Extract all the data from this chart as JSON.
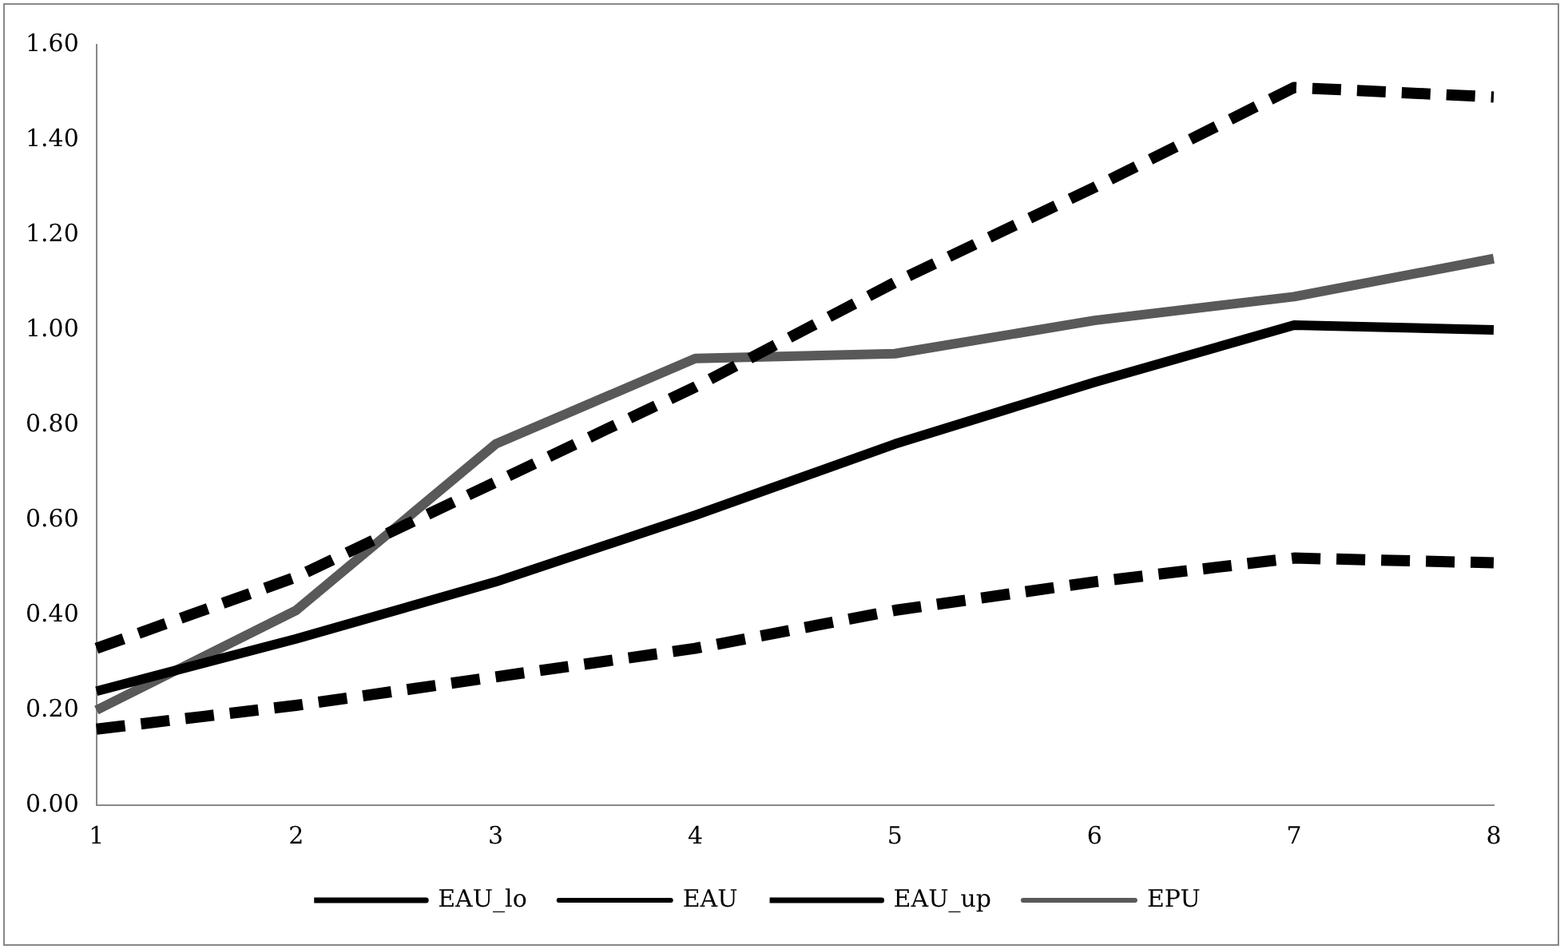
{
  "chart_data": {
    "type": "line",
    "categories": [
      "1",
      "2",
      "3",
      "4",
      "5",
      "6",
      "7",
      "8"
    ],
    "series": [
      {
        "name": "EAU_lo",
        "color": "#000000",
        "line_style": "dashed",
        "values": [
          0.16,
          0.21,
          0.27,
          0.33,
          0.41,
          0.47,
          0.52,
          0.51
        ]
      },
      {
        "name": "EAU",
        "color": "#000000",
        "line_style": "solid",
        "values": [
          0.24,
          0.35,
          0.47,
          0.61,
          0.76,
          0.89,
          1.01,
          1.0
        ]
      },
      {
        "name": "EAU_up",
        "color": "#000000",
        "line_style": "dashed",
        "values": [
          0.33,
          0.48,
          0.68,
          0.88,
          1.1,
          1.3,
          1.51,
          1.49
        ]
      },
      {
        "name": "EPU",
        "color": "#595959",
        "line_style": "solid",
        "values": [
          0.2,
          0.41,
          0.76,
          0.94,
          0.95,
          1.02,
          1.07,
          1.15
        ]
      }
    ],
    "ylim": [
      0,
      1.6
    ],
    "yticks": [
      {
        "value": 0,
        "label": "0.00"
      },
      {
        "value": 0.2,
        "label": "0.20"
      },
      {
        "value": 0.4,
        "label": "0.40"
      },
      {
        "value": 0.6,
        "label": "0.60"
      },
      {
        "value": 0.8,
        "label": "0.80"
      },
      {
        "value": 1.0,
        "label": "1.00"
      },
      {
        "value": 1.2,
        "label": "1.20"
      },
      {
        "value": 1.4,
        "label": "1.40"
      },
      {
        "value": 1.6,
        "label": "1.60"
      }
    ],
    "grid": false,
    "legend": "bottom",
    "marker": "none"
  }
}
